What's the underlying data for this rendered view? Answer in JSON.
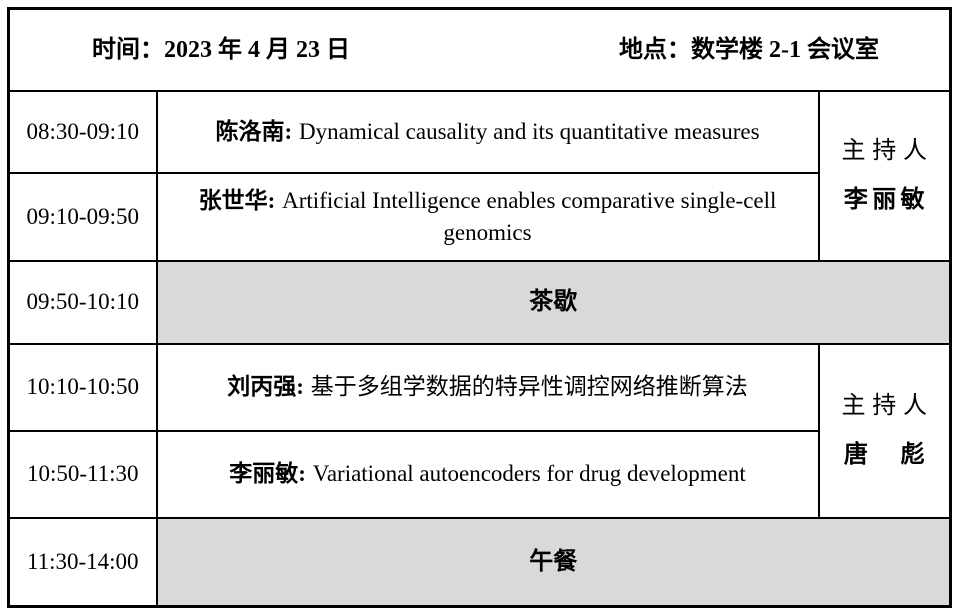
{
  "header": {
    "date_label": "时间：2023 年 4 月 23 日",
    "venue_label": "地点：数学楼 2-1 会议室"
  },
  "colors": {
    "break_background": "#d9d9d9",
    "border": "#000000",
    "page_background": "#ffffff",
    "text": "#000000"
  },
  "rows": [
    {
      "time": "08:30-09:10",
      "speaker": "陈洛南:",
      "title": "Dynamical causality and its quantitative measures",
      "type": "talk"
    },
    {
      "time": "09:10-09:50",
      "speaker": "张世华:",
      "title": "Artificial Intelligence enables comparative single-cell genomics",
      "type": "talk"
    },
    {
      "time": "09:50-10:10",
      "label": "茶歇",
      "type": "break"
    },
    {
      "time": "10:10-10:50",
      "speaker": "刘丙强:",
      "title": "基于多组学数据的特异性调控网络推断算法",
      "type": "talk"
    },
    {
      "time": "10:50-11:30",
      "speaker": "李丽敏:",
      "title": "Variational autoencoders for drug development",
      "type": "talk"
    },
    {
      "time": "11:30-14:00",
      "label": "午餐",
      "type": "break"
    }
  ],
  "chairs": [
    {
      "label": "主持人",
      "name": "李丽敏"
    },
    {
      "label": "主持人",
      "name": "唐　彪"
    }
  ]
}
